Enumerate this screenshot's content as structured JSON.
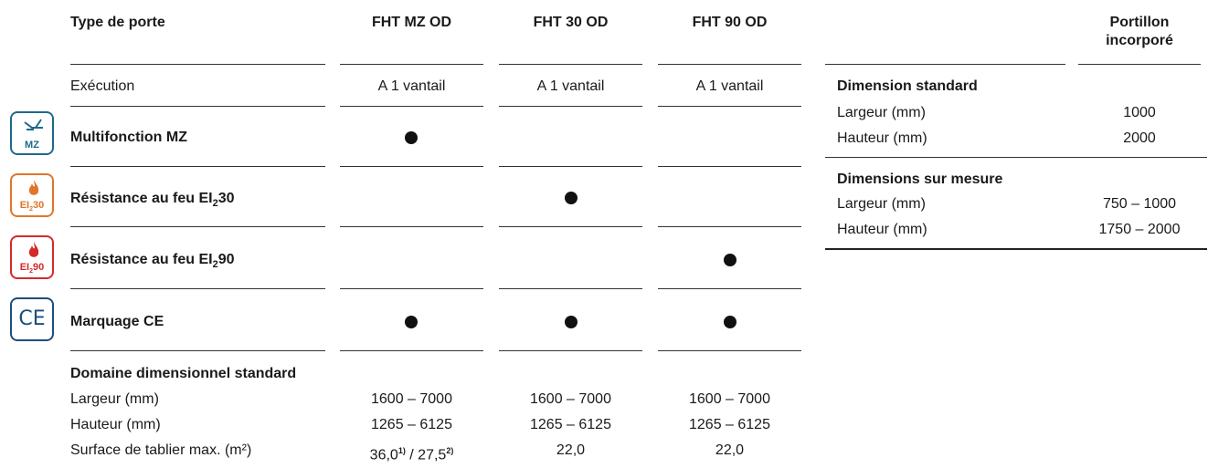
{
  "header": {
    "type_label": "Type de porte",
    "col1": "FHT MZ OD",
    "col2": "FHT 30 OD",
    "col3": "FHT 90 OD",
    "side_title_line1": "Portillon",
    "side_title_line2": "incorporé"
  },
  "rows": {
    "execution": {
      "label": "Exécution",
      "v1": "A 1 vantail",
      "v2": "A 1 vantail",
      "v3": "A 1 vantail"
    },
    "mz": {
      "label": "Multifonction MZ",
      "icon_text": "MZ"
    },
    "ei30": {
      "label_pre": "Résistance au feu EI",
      "label_sub": "2",
      "label_post": "30",
      "icon_pre": "EI",
      "icon_sub": "2",
      "icon_post": "30"
    },
    "ei90": {
      "label_pre": "Résistance au feu EI",
      "label_sub": "2",
      "label_post": "90",
      "icon_pre": "EI",
      "icon_sub": "2",
      "icon_post": "90"
    },
    "ce": {
      "label": "Marquage CE",
      "icon_text": "CE"
    }
  },
  "dimensions": {
    "heading": "Domaine dimensionnel standard",
    "largeur": {
      "label": "Largeur (mm)",
      "v1": "1600 – 7000",
      "v2": "1600 – 7000",
      "v3": "1600 – 7000"
    },
    "hauteur": {
      "label": "Hauteur (mm)",
      "v1": "1265 – 6125",
      "v2": "1265 – 6125",
      "v3": "1265 – 6125"
    },
    "surface": {
      "label": "Surface de tablier max. (m²)",
      "v1_a": "36,0",
      "v1_a_note": "1)",
      "v1_sep": " / ",
      "v1_b": "27,5",
      "v1_b_note": "2)",
      "v2": "22,0",
      "v3": "22,0"
    }
  },
  "side": {
    "std_heading": "Dimension standard",
    "std_largeur_label": "Largeur (mm)",
    "std_largeur_value": "1000",
    "std_hauteur_label": "Hauteur (mm)",
    "std_hauteur_value": "2000",
    "mesure_heading": "Dimensions sur mesure",
    "mes_largeur_label": "Largeur (mm)",
    "mes_largeur_value": "750 – 1000",
    "mes_hauteur_label": "Hauteur (mm)",
    "mes_hauteur_value": "1750 – 2000"
  },
  "colors": {
    "mz_icon": "#1d6a8a",
    "ei30_icon": "#e0762a",
    "ei90_icon": "#d42a2a",
    "ce_icon": "#1c4f7a"
  }
}
